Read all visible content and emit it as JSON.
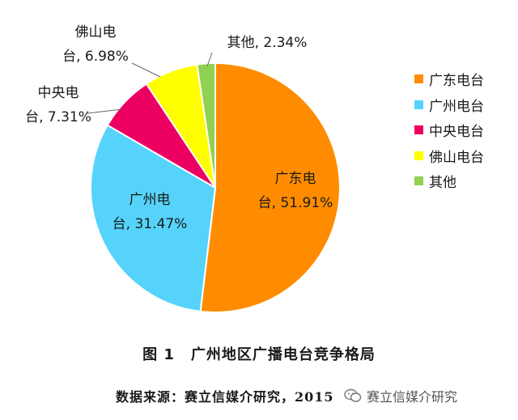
{
  "chart_data": {
    "type": "pie",
    "slices": [
      {
        "name": "广东电台",
        "value": 51.91,
        "color": "#FF8C00",
        "label_lines": [
          "广东电",
          "台, 51.91%"
        ]
      },
      {
        "name": "广州电台",
        "value": 31.47,
        "color": "#55D3FA",
        "label_lines": [
          "广州电",
          "台, 31.47%"
        ]
      },
      {
        "name": "中央电台",
        "value": 7.31,
        "color": "#EC0061",
        "label_lines": [
          "中央电",
          "台, 7.31%"
        ]
      },
      {
        "name": "佛山电台",
        "value": 6.98,
        "color": "#FFFF00",
        "label_lines": [
          "佛山电",
          "台, 6.98%"
        ]
      },
      {
        "name": "其他",
        "value": 2.34,
        "color": "#92D050",
        "label_lines": [
          "其他, 2.34%"
        ]
      }
    ],
    "legend_position": "right"
  },
  "caption": {
    "number": "图 1",
    "title": "广州地区广播电台竞争格局"
  },
  "source": "数据来源：赛立信媒介研究，2015",
  "watermark": "赛立信媒介研究"
}
